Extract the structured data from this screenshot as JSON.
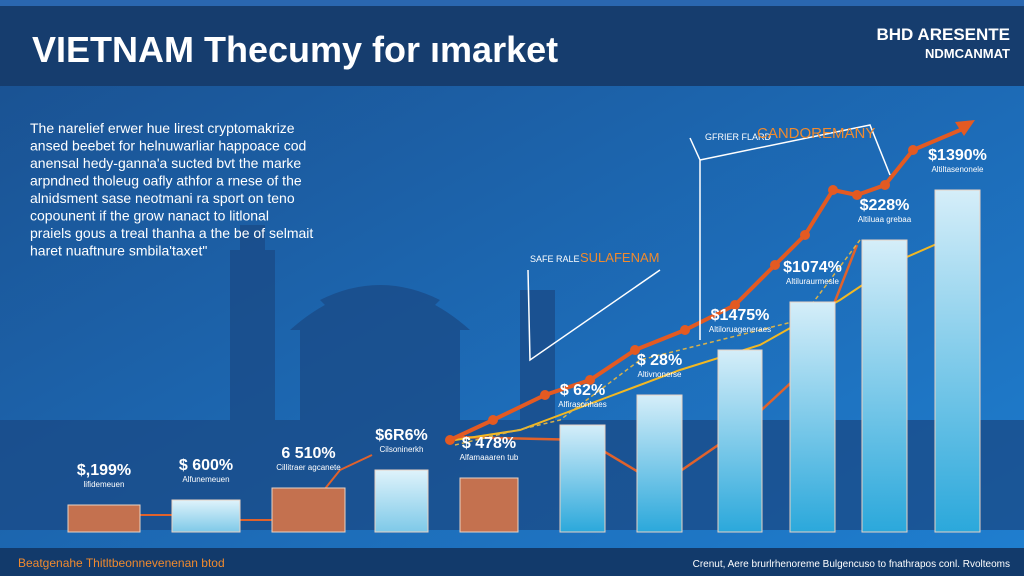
{
  "header": {
    "title": "VIETNAM Thecumy for ımarket",
    "brand": [
      "BHD ARESENTE",
      "NDMCANMAT"
    ]
  },
  "paragraph": [
    "The narelief erwer hue lirest cryptomakrize",
    "ansed beebet for helnuwarliar happoace cod",
    "anensal hedy-ganna'a sucted bvt the marke",
    "arpndned tholeug oafly athfor a rnese of the",
    "alnidsment sase neotmani ra sport on teno",
    "copounent if the grow nanact to litlonal",
    "praiels gous a treal thanha a the be of selmait",
    "haret nuaftnure smbila'taxet\""
  ],
  "bars": [
    {
      "label": "$,199%",
      "sublabel": "lifidemeuen"
    },
    {
      "label": "$ 600%",
      "sublabel": "Alfunemeuen"
    },
    {
      "label": "6 510%",
      "sublabel": "Cillitraer agcanete"
    },
    {
      "label": "$6R6%",
      "sublabel": "Cilsoninerkh"
    },
    {
      "label": "$ 478%",
      "sublabel": "Alfamaaaren tub"
    },
    {
      "label": "$ 62%",
      "sublabel": "Alfirasonhaes"
    },
    {
      "label": "$ 28%",
      "sublabel": "Altivnonerse"
    },
    {
      "label": "$1475%",
      "sublabel": "Altiloruageneraes"
    },
    {
      "label": "$1074%",
      "sublabel": "Altiluraurmesle"
    },
    {
      "label": "$228%",
      "sublabel": "Altiluaa grebaa"
    },
    {
      "label": "$1390%",
      "sublabel": "Altiltasenonele"
    }
  ],
  "annotations": [
    {
      "text": "CANDOREMANY",
      "tag": "GFRIER FLARD"
    },
    {
      "text": "SULAFENAM",
      "tag": "SAFE RALE"
    }
  ],
  "footer": {
    "left": "Beatgenahe Thitltbeonnevenenan btod",
    "right": "Crenut, Aere brurlrhenoreme Bulgencuso to fnathrapos conl. Rvolteoms"
  }
}
